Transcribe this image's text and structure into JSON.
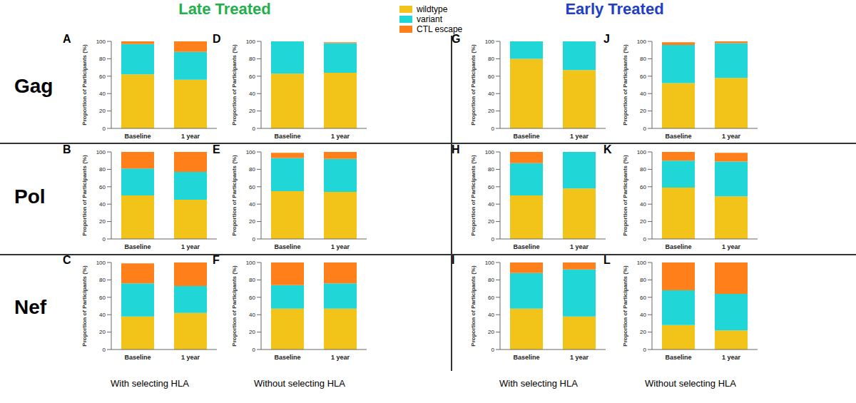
{
  "groups": [
    {
      "label": "Late Treated",
      "color": "#22b04b"
    },
    {
      "label": "Early Treated",
      "color": "#1f3fc4"
    }
  ],
  "rows": [
    "Gag",
    "Pol",
    "Nef"
  ],
  "column_labels": [
    "With selecting HLA",
    "Without selecting HLA",
    "With selecting HLA",
    "Without selecting HLA"
  ],
  "chart_data": [
    {
      "type": "bar",
      "stacked": true,
      "title": "A",
      "y_label": "Proportion of Participants (%)",
      "categories": [
        "Baseline",
        "1 year"
      ],
      "ylim": [
        0,
        100
      ],
      "yticks": [
        0,
        20,
        40,
        60,
        80,
        100
      ],
      "series": [
        {
          "name": "wildtype",
          "color": "#f2c318",
          "values": [
            62,
            56
          ]
        },
        {
          "name": "variant",
          "color": "#20d6d6",
          "values": [
            35,
            32
          ]
        },
        {
          "name": "CTL escape",
          "color": "#ff7f1a",
          "values": [
            3,
            12
          ]
        }
      ]
    },
    {
      "type": "bar",
      "stacked": true,
      "title": "B",
      "y_label": "Proportion of Participants (%)",
      "categories": [
        "Baseline",
        "1 year"
      ],
      "ylim": [
        0,
        100
      ],
      "yticks": [
        0,
        20,
        40,
        60,
        80,
        100
      ],
      "series": [
        {
          "name": "wildtype",
          "color": "#f2c318",
          "values": [
            50,
            45
          ]
        },
        {
          "name": "variant",
          "color": "#20d6d6",
          "values": [
            31,
            32
          ]
        },
        {
          "name": "CTL escape",
          "color": "#ff7f1a",
          "values": [
            19,
            23
          ]
        }
      ]
    },
    {
      "type": "bar",
      "stacked": true,
      "title": "C",
      "y_label": "Proportion of Participants (%)",
      "categories": [
        "Baseline",
        "1 year"
      ],
      "ylim": [
        0,
        100
      ],
      "yticks": [
        0,
        20,
        40,
        60,
        80,
        100
      ],
      "series": [
        {
          "name": "wildtype",
          "color": "#f2c318",
          "values": [
            38,
            42
          ]
        },
        {
          "name": "variant",
          "color": "#20d6d6",
          "values": [
            38,
            31
          ]
        },
        {
          "name": "CTL escape",
          "color": "#ff7f1a",
          "values": [
            23,
            27
          ]
        }
      ]
    },
    {
      "type": "bar",
      "stacked": true,
      "title": "D",
      "y_label": "Proportion of Participants (%)",
      "categories": [
        "Baseline",
        "1 year"
      ],
      "ylim": [
        0,
        100
      ],
      "yticks": [
        0,
        20,
        40,
        60,
        80,
        100
      ],
      "series": [
        {
          "name": "wildtype",
          "color": "#f2c318",
          "values": [
            63,
            64
          ]
        },
        {
          "name": "variant",
          "color": "#20d6d6",
          "values": [
            37,
            34
          ]
        },
        {
          "name": "CTL escape",
          "color": "#ff7f1a",
          "values": [
            0,
            1
          ]
        }
      ]
    },
    {
      "type": "bar",
      "stacked": true,
      "title": "E",
      "y_label": "Proportion of Participants (%)",
      "categories": [
        "Baseline",
        "1 year"
      ],
      "ylim": [
        0,
        100
      ],
      "yticks": [
        0,
        20,
        40,
        60,
        80,
        100
      ],
      "series": [
        {
          "name": "wildtype",
          "color": "#f2c318",
          "values": [
            55,
            54
          ]
        },
        {
          "name": "variant",
          "color": "#20d6d6",
          "values": [
            38,
            38
          ]
        },
        {
          "name": "CTL escape",
          "color": "#ff7f1a",
          "values": [
            6,
            8
          ]
        }
      ]
    },
    {
      "type": "bar",
      "stacked": true,
      "title": "F",
      "y_label": "Proportion of Participants (%)",
      "categories": [
        "Baseline",
        "1 year"
      ],
      "ylim": [
        0,
        100
      ],
      "yticks": [
        0,
        20,
        40,
        60,
        80,
        100
      ],
      "series": [
        {
          "name": "wildtype",
          "color": "#f2c318",
          "values": [
            47,
            47
          ]
        },
        {
          "name": "variant",
          "color": "#20d6d6",
          "values": [
            27,
            29
          ]
        },
        {
          "name": "CTL escape",
          "color": "#ff7f1a",
          "values": [
            26,
            24
          ]
        }
      ]
    },
    {
      "type": "bar",
      "stacked": true,
      "title": "G",
      "y_label": "Proportion of Participants (%)",
      "categories": [
        "Baseline",
        "1 year"
      ],
      "ylim": [
        0,
        100
      ],
      "yticks": [
        0,
        20,
        40,
        60,
        80,
        100
      ],
      "series": [
        {
          "name": "wildtype",
          "color": "#f2c318",
          "values": [
            80,
            67
          ]
        },
        {
          "name": "variant",
          "color": "#20d6d6",
          "values": [
            20,
            33
          ]
        },
        {
          "name": "CTL escape",
          "color": "#ff7f1a",
          "values": [
            0,
            0
          ]
        }
      ]
    },
    {
      "type": "bar",
      "stacked": true,
      "title": "H",
      "y_label": "Proportion of Participants (%)",
      "categories": [
        "Baseline",
        "1 year"
      ],
      "ylim": [
        0,
        100
      ],
      "yticks": [
        0,
        20,
        40,
        60,
        80,
        100
      ],
      "series": [
        {
          "name": "wildtype",
          "color": "#f2c318",
          "values": [
            50,
            58
          ]
        },
        {
          "name": "variant",
          "color": "#20d6d6",
          "values": [
            37,
            42
          ]
        },
        {
          "name": "CTL escape",
          "color": "#ff7f1a",
          "values": [
            13,
            0
          ]
        }
      ]
    },
    {
      "type": "bar",
      "stacked": true,
      "title": "I",
      "y_label": "Proportion of Participants (%)",
      "categories": [
        "Baseline",
        "1 year"
      ],
      "ylim": [
        0,
        100
      ],
      "yticks": [
        0,
        20,
        40,
        60,
        80,
        100
      ],
      "series": [
        {
          "name": "wildtype",
          "color": "#f2c318",
          "values": [
            47,
            38
          ]
        },
        {
          "name": "variant",
          "color": "#20d6d6",
          "values": [
            41,
            54
          ]
        },
        {
          "name": "CTL escape",
          "color": "#ff7f1a",
          "values": [
            12,
            8
          ]
        }
      ]
    },
    {
      "type": "bar",
      "stacked": true,
      "title": "J",
      "y_label": "Proportion of Participants (%)",
      "categories": [
        "Baseline",
        "1 year"
      ],
      "ylim": [
        0,
        100
      ],
      "yticks": [
        0,
        20,
        40,
        60,
        80,
        100
      ],
      "series": [
        {
          "name": "wildtype",
          "color": "#f2c318",
          "values": [
            52,
            58
          ]
        },
        {
          "name": "variant",
          "color": "#20d6d6",
          "values": [
            44,
            40
          ]
        },
        {
          "name": "CTL escape",
          "color": "#ff7f1a",
          "values": [
            3,
            2
          ]
        }
      ]
    },
    {
      "type": "bar",
      "stacked": true,
      "title": "K",
      "y_label": "Proportion of Participants (%)",
      "categories": [
        "Baseline",
        "1 year"
      ],
      "ylim": [
        0,
        100
      ],
      "yticks": [
        0,
        20,
        40,
        60,
        80,
        100
      ],
      "series": [
        {
          "name": "wildtype",
          "color": "#f2c318",
          "values": [
            59,
            49
          ]
        },
        {
          "name": "variant",
          "color": "#20d6d6",
          "values": [
            31,
            40
          ]
        },
        {
          "name": "CTL escape",
          "color": "#ff7f1a",
          "values": [
            10,
            10
          ]
        }
      ]
    },
    {
      "type": "bar",
      "stacked": true,
      "title": "L",
      "y_label": "Proportion of Participants (%)",
      "categories": [
        "Baseline",
        "1 year"
      ],
      "ylim": [
        0,
        100
      ],
      "yticks": [
        0,
        20,
        40,
        60,
        80,
        100
      ],
      "series": [
        {
          "name": "wildtype",
          "color": "#f2c318",
          "values": [
            28,
            22
          ]
        },
        {
          "name": "variant",
          "color": "#20d6d6",
          "values": [
            40,
            42
          ]
        },
        {
          "name": "CTL escape",
          "color": "#ff7f1a",
          "values": [
            32,
            36
          ]
        }
      ]
    }
  ]
}
